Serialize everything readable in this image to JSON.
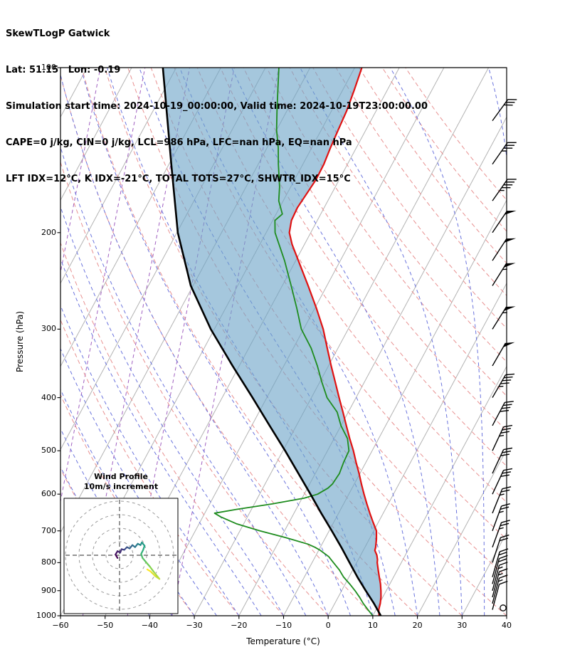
{
  "header": {
    "title": "SkewTLogP Gatwick",
    "location": "Lat: 51.15   Lon: -0.19",
    "times": "Simulation start time: 2024-10-19_00:00:00, Valid time: 2024-10-19T23:00:00.00",
    "indices1": "CAPE=0 j/kg, CIN=0 j/kg, LCL=986 hPa, LFC=nan hPa, EQ=nan hPa",
    "indices2": "LFT IDX=12°C, K IDX=-21°C, TOTAL TOTS=27°C, SHWTR_IDX=15°C"
  },
  "axes": {
    "x_label": "Temperature (°C)",
    "y_label": "Pressure (hPa)",
    "x_tick_values": [
      -60,
      -50,
      -40,
      -30,
      -20,
      -10,
      0,
      10,
      20,
      30,
      40
    ],
    "x_tick_labels": [
      "−60",
      "−50",
      "−40",
      "−30",
      "−20",
      "−10",
      "0",
      "10",
      "20",
      "30",
      "40"
    ],
    "y_tick_values": [
      100,
      200,
      300,
      400,
      500,
      600,
      700,
      800,
      900,
      1000
    ],
    "y_tick_labels": [
      "100",
      "200",
      "300",
      "400",
      "500",
      "600",
      "700",
      "800",
      "900",
      "1000"
    ]
  },
  "inset": {
    "title_line1": "Wind Profile",
    "title_line2": "10m/s increment",
    "ring_increment_ms": 10,
    "rings_ms": [
      10,
      20,
      30,
      40
    ]
  },
  "colors": {
    "temperature": "#e01212",
    "dewpoint": "#1e8c1e",
    "parcel": "#000000",
    "cape_fill": "rgba(110,165,200,0.62)",
    "isotherm": "#b3b3b3",
    "dry_adiabat": "#e89090",
    "moist_adiabat": "#6b74dd",
    "isohume": "#a05fc0",
    "barb": "#000000",
    "hodo_viridis": [
      "#440154",
      "#414487",
      "#2a788e",
      "#22a884",
      "#7ad151",
      "#fde725"
    ]
  },
  "chart_data": {
    "type": "line",
    "subtype": "skewt-logp",
    "title": "SkewTLogP Gatwick",
    "xlabel": "Temperature (°C)",
    "ylabel": "Pressure (hPa)",
    "xlim": [
      -60,
      40
    ],
    "pressure_lim_hpa": [
      1000,
      100
    ],
    "grid": "skewed isotherms, dry/moist adiabats, isohumes",
    "legend_position": "none",
    "series": [
      {
        "name": "temperature",
        "pressure_hpa": [
          1000,
          975,
          950,
          925,
          900,
          875,
          850,
          825,
          800,
          790,
          775,
          760,
          750,
          725,
          700,
          675,
          650,
          625,
          600,
          575,
          550,
          525,
          500,
          475,
          450,
          425,
          400,
          375,
          350,
          325,
          300,
          275,
          250,
          225,
          210,
          200,
          190,
          180,
          170,
          160,
          150,
          140,
          130,
          120,
          110,
          100
        ],
        "values_c": [
          11.4,
          10.6,
          10.2,
          9.6,
          8.8,
          7.9,
          6.8,
          5.7,
          4.6,
          4.3,
          3.6,
          2.6,
          2.4,
          1.6,
          0.6,
          -1.2,
          -3.0,
          -4.8,
          -6.6,
          -8.4,
          -10.2,
          -12.2,
          -14.2,
          -16.5,
          -18.8,
          -21.2,
          -23.8,
          -26.5,
          -29.4,
          -32.4,
          -35.6,
          -39.6,
          -44.2,
          -49.4,
          -52.8,
          -54.8,
          -55.8,
          -56.0,
          -55.6,
          -55.2,
          -55.3,
          -55.8,
          -56.2,
          -56.6,
          -57.4,
          -58.4
        ]
      },
      {
        "name": "dewpoint",
        "pressure_hpa": [
          1000,
          975,
          950,
          925,
          900,
          875,
          850,
          825,
          800,
          780,
          760,
          750,
          740,
          720,
          700,
          680,
          660,
          650,
          640,
          625,
          610,
          600,
          585,
          575,
          550,
          525,
          500,
          475,
          450,
          425,
          400,
          375,
          350,
          325,
          300,
          275,
          250,
          225,
          200,
          190,
          185,
          175,
          165,
          150,
          140,
          130,
          120,
          110,
          100
        ],
        "values_c": [
          10.0,
          8.2,
          6.4,
          4.8,
          3.0,
          1.0,
          -1.2,
          -3.0,
          -5.2,
          -7.0,
          -9.6,
          -11.2,
          -13.2,
          -19.0,
          -25.5,
          -31.5,
          -36.0,
          -37.8,
          -33.5,
          -26.0,
          -19.5,
          -17.0,
          -15.4,
          -14.9,
          -14.6,
          -15.0,
          -15.2,
          -17.0,
          -20.0,
          -22.5,
          -26.5,
          -29.5,
          -32.5,
          -36.0,
          -40.5,
          -44.0,
          -48.0,
          -52.5,
          -58.0,
          -59.5,
          -58.6,
          -61.0,
          -62.5,
          -65.5,
          -67.5,
          -70.0,
          -72.2,
          -74.5,
          -77.0
        ]
      },
      {
        "name": "parcel",
        "pressure_hpa": [
          1000,
          950,
          900,
          850,
          800,
          750,
          700,
          650,
          600,
          550,
          500,
          450,
          400,
          350,
          300,
          250,
          200,
          150,
          100
        ],
        "values_c": [
          11.8,
          8.8,
          5.4,
          1.9,
          -1.6,
          -5.3,
          -9.4,
          -13.9,
          -18.6,
          -23.8,
          -29.5,
          -36.0,
          -43.2,
          -51.5,
          -60.8,
          -70.5,
          -79.8,
          -89.5,
          -103.0
        ]
      }
    ],
    "wind_barbs": [
      {
        "p": 1000,
        "kt": 0,
        "dir": 0,
        "calm": true
      },
      {
        "p": 975,
        "kt": 10,
        "dir": 195
      },
      {
        "p": 950,
        "kt": 15,
        "dir": 195
      },
      {
        "p": 925,
        "kt": 15,
        "dir": 195
      },
      {
        "p": 900,
        "kt": 15,
        "dir": 195
      },
      {
        "p": 875,
        "kt": 20,
        "dir": 195
      },
      {
        "p": 850,
        "kt": 20,
        "dir": 196
      },
      {
        "p": 800,
        "kt": 20,
        "dir": 198
      },
      {
        "p": 750,
        "kt": 25,
        "dir": 200
      },
      {
        "p": 700,
        "kt": 25,
        "dir": 200
      },
      {
        "p": 650,
        "kt": 25,
        "dir": 202
      },
      {
        "p": 600,
        "kt": 30,
        "dir": 205
      },
      {
        "p": 550,
        "kt": 30,
        "dir": 205
      },
      {
        "p": 500,
        "kt": 35,
        "dir": 205
      },
      {
        "p": 450,
        "kt": 40,
        "dir": 208
      },
      {
        "p": 400,
        "kt": 45,
        "dir": 210
      },
      {
        "p": 350,
        "kt": 50,
        "dir": 210
      },
      {
        "p": 300,
        "kt": 55,
        "dir": 212
      },
      {
        "p": 250,
        "kt": 55,
        "dir": 212
      },
      {
        "p": 225,
        "kt": 50,
        "dir": 213
      },
      {
        "p": 200,
        "kt": 50,
        "dir": 214
      },
      {
        "p": 175,
        "kt": 45,
        "dir": 215
      },
      {
        "p": 150,
        "kt": 35,
        "dir": 215
      },
      {
        "p": 125,
        "kt": 30,
        "dir": 216
      }
    ],
    "hodograph_uv_ms": [
      [
        -1.5,
        -2
      ],
      [
        -3,
        0.5
      ],
      [
        -1.5,
        3
      ],
      [
        0.5,
        2
      ],
      [
        1.5,
        4.5
      ],
      [
        3.5,
        4
      ],
      [
        5.5,
        6
      ],
      [
        7.5,
        5
      ],
      [
        9.5,
        7.5
      ],
      [
        11.5,
        6
      ],
      [
        13.5,
        8.5
      ],
      [
        15.5,
        7.5
      ],
      [
        16.5,
        9.5
      ],
      [
        18.5,
        7
      ],
      [
        17.5,
        4
      ],
      [
        16,
        1
      ],
      [
        17,
        -2
      ],
      [
        19.5,
        -5
      ],
      [
        22.5,
        -8.5
      ],
      [
        25.5,
        -12.5
      ],
      [
        29.5,
        -17.5
      ],
      [
        26.5,
        -15.5
      ],
      [
        23,
        -12
      ],
      [
        20.5,
        -10.5
      ]
    ],
    "background": {
      "isotherm_c": {
        "min": -120,
        "max": 40,
        "step": 10
      },
      "dry_adiabat_theta_c": {
        "min": -40,
        "max": 160,
        "step": 10
      },
      "moist_adiabat_t0_c": {
        "min": -40,
        "max": 55,
        "step": 5
      },
      "isohume_t0_c": {
        "min": -95,
        "max": -35,
        "step": 10
      },
      "isohume_slope_c_per_decade": 42
    }
  }
}
